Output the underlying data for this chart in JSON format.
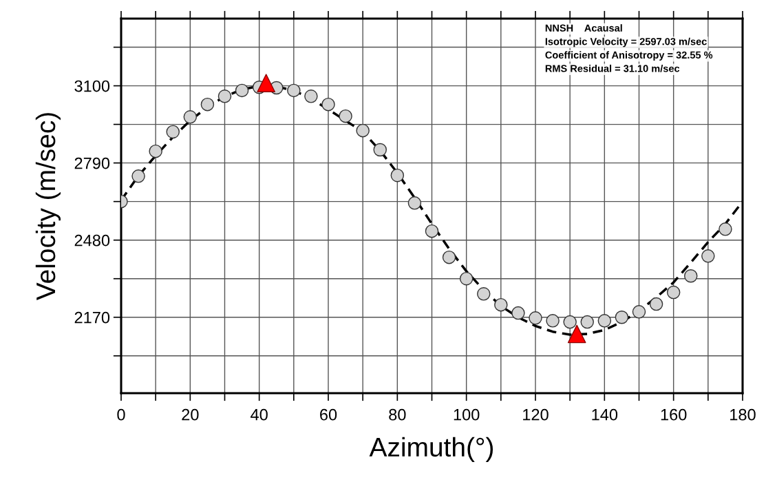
{
  "chart_data": {
    "type": "scatter",
    "xlabel": "Azimuth(°)",
    "ylabel": "Velocity (m/sec)",
    "xlim": [
      0,
      180
    ],
    "ylim": [
      1865,
      3370
    ],
    "xticks": [
      0,
      {
        "value": 10,
        "label": null
      },
      20,
      {
        "value": 30,
        "label": null
      },
      40,
      {
        "value": 50,
        "label": null
      },
      60,
      {
        "value": 70,
        "label": null
      },
      80,
      {
        "value": 90,
        "label": null
      },
      100,
      {
        "value": 110,
        "label": null
      },
      120,
      {
        "value": 130,
        "label": null
      },
      140,
      {
        "value": 150,
        "label": null
      },
      160,
      {
        "value": 170,
        "label": null
      },
      180
    ],
    "yticks": [
      {
        "value": 2015,
        "label": null
      },
      2170,
      {
        "value": 2325,
        "label": null
      },
      2480,
      {
        "value": 2635,
        "label": null
      },
      2790,
      {
        "value": 2945,
        "label": null
      },
      3100,
      {
        "value": 3255,
        "label": null
      }
    ],
    "grid": true,
    "legend": false,
    "annotations": [
      "NNSH    Acausal",
      "Isotropic Velocity = 2597.03 m/sec",
      "Coefficient of Anisotropy = 32.55 %",
      "RMS Residual = 31.10 m/sec"
    ],
    "series": [
      {
        "type": "line",
        "color": "#000000",
        "line_style": "dashed",
        "marker": "none",
        "x": [
          0,
          5,
          10,
          15,
          20,
          25,
          30,
          35,
          40,
          45,
          50,
          55,
          60,
          65,
          70,
          75,
          80,
          85,
          90,
          95,
          100,
          105,
          110,
          115,
          120,
          125,
          130,
          135,
          140,
          145,
          150,
          155,
          160,
          165,
          170,
          175,
          180
        ],
        "values": [
          2640,
          2738,
          2819,
          2894,
          2960,
          3015,
          3057,
          3085,
          3099,
          3097,
          3081,
          3049,
          3005,
          2960,
          2915,
          2840,
          2750,
          2650,
          2545,
          2445,
          2355,
          2280,
          2215,
          2170,
          2135,
          2112,
          2100,
          2103,
          2119,
          2151,
          2195,
          2250,
          2310,
          2390,
          2472,
          2545,
          2635
        ]
      },
      {
        "color": "#d3d3d3",
        "marker": "circle",
        "x": [
          0,
          5,
          10,
          15,
          20,
          25,
          30,
          35,
          40,
          45,
          50,
          55,
          60,
          65,
          70,
          75,
          80,
          85,
          90,
          95,
          100,
          105,
          110,
          115,
          120,
          125,
          130,
          135,
          140,
          145,
          150,
          155,
          160,
          165,
          170,
          175
        ],
        "values": [
          2635,
          2737,
          2837,
          2915,
          2975,
          3025,
          3058,
          3081,
          3094,
          3092,
          3081,
          3058,
          3025,
          2978,
          2920,
          2843,
          2740,
          2629,
          2516,
          2411,
          2325,
          2264,
          2220,
          2187,
          2167,
          2156,
          2151,
          2151,
          2156,
          2170,
          2192,
          2223,
          2270,
          2336,
          2416,
          2524
        ]
      },
      {
        "color": "#ff0000",
        "marker": "triangle",
        "x": [
          42,
          132
        ],
        "values": [
          3111,
          2103
        ]
      }
    ]
  }
}
